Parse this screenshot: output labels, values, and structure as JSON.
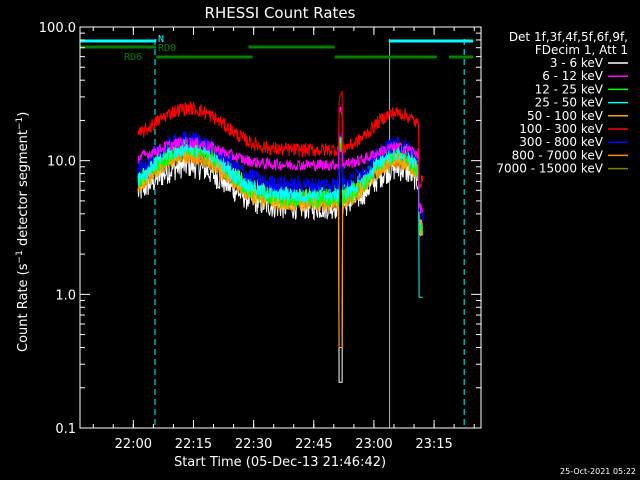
{
  "chart_data": {
    "type": "line",
    "title": "RHESSI Count Rates",
    "xlabel": "Start Time (05-Dec-13 21:46:42)",
    "ylabel": "Count Rate (s⁻¹ detector segment⁻¹)",
    "ylabel_parts": {
      "a": "Count Rate (s",
      "sup1": "−1",
      "b": " detector segment",
      "sup2": "−1",
      "c": ")"
    },
    "yscale": "log",
    "ylim": [
      0.1,
      100
    ],
    "xlim_minutes": [
      0,
      100
    ],
    "x_ticks": [
      {
        "minute": 13.3,
        "label": "22:00"
      },
      {
        "minute": 28.3,
        "label": "22:15"
      },
      {
        "minute": 43.3,
        "label": "22:30"
      },
      {
        "minute": 58.3,
        "label": "22:45"
      },
      {
        "minute": 73.3,
        "label": "23:00"
      },
      {
        "minute": 88.3,
        "label": "23:15"
      }
    ],
    "y_ticks": [
      {
        "value": 0.1,
        "label": "0.1"
      },
      {
        "value": 1.0,
        "label": "1.0"
      },
      {
        "value": 10.0,
        "label": "10.0"
      },
      {
        "value": 100.0,
        "label": "100.0"
      }
    ],
    "legend_header": [
      "Det 1f,3f,4f,5f,6f,9f,",
      "FDecim 1, Att 1"
    ],
    "legend_position": "right",
    "series": [
      {
        "name": "3 - 6 keV",
        "color": "#ffffff",
        "base": 4.5,
        "amp1": 1.0,
        "amp2": 0.95,
        "noise": 0.22
      },
      {
        "name": "6 - 12 keV",
        "color": "#ff00ff",
        "base": 9.3,
        "amp1": 0.45,
        "amp2": 0.35,
        "noise": 0.1
      },
      {
        "name": "12 - 25 keV",
        "color": "#00ff00",
        "base": 5.2,
        "amp1": 1.3,
        "amp2": 1.15,
        "noise": 0.18
      },
      {
        "name": "25 - 50 keV",
        "color": "#00ffff",
        "base": 5.6,
        "amp1": 1.2,
        "amp2": 1.05,
        "noise": 0.16
      },
      {
        "name": "50 - 100 keV",
        "color": "#ffa500",
        "base": 4.9,
        "amp1": 1.25,
        "amp2": 1.1,
        "noise": 0.17
      },
      {
        "name": "100 - 300 keV",
        "color": "#ff0000",
        "base": 12.0,
        "amp1": 1.0,
        "amp2": 0.9,
        "noise": 0.12
      },
      {
        "name": "300 - 800 keV",
        "color": "#0000ff",
        "base": 6.6,
        "amp1": 1.15,
        "amp2": 1.0,
        "noise": 0.14
      },
      {
        "name": "800 - 7000 keV",
        "color": "#ff8c00",
        "base": 4.9,
        "amp1": 1.22,
        "amp2": 1.08,
        "noise": 0.16
      },
      {
        "name": "7000 - 15000 keV",
        "color": "#808000",
        "base": 5.2,
        "amp1": 1.1,
        "amp2": 1.0,
        "noise": 0.15
      }
    ],
    "data_range_minutes": [
      14.5,
      85.5
    ],
    "spike_minute": 65.0,
    "dropout_minute": 84.5,
    "flag_bars": [
      {
        "label": "N",
        "color": "#00ffff",
        "row": 1,
        "segments": [
          [
            0,
            19
          ],
          [
            77,
            98
          ]
        ]
      },
      {
        "label": "RD0",
        "color": "#008000",
        "row": 2,
        "segments": [
          [
            0,
            19
          ],
          [
            42,
            63.5
          ]
        ]
      },
      {
        "label": "RD6",
        "color": "#008000",
        "row": 3,
        "segments": [
          [
            19,
            43
          ],
          [
            63.5,
            89
          ],
          [
            92,
            98
          ]
        ]
      }
    ],
    "night_lines_minutes": [
      {
        "minute": 0,
        "style": "solid"
      },
      {
        "minute": 18.7,
        "style": "dashed"
      },
      {
        "minute": 77.2,
        "style": "solid"
      },
      {
        "minute": 95.8,
        "style": "dashed"
      }
    ],
    "timestamp": "25-Oct-2021 05:22"
  }
}
